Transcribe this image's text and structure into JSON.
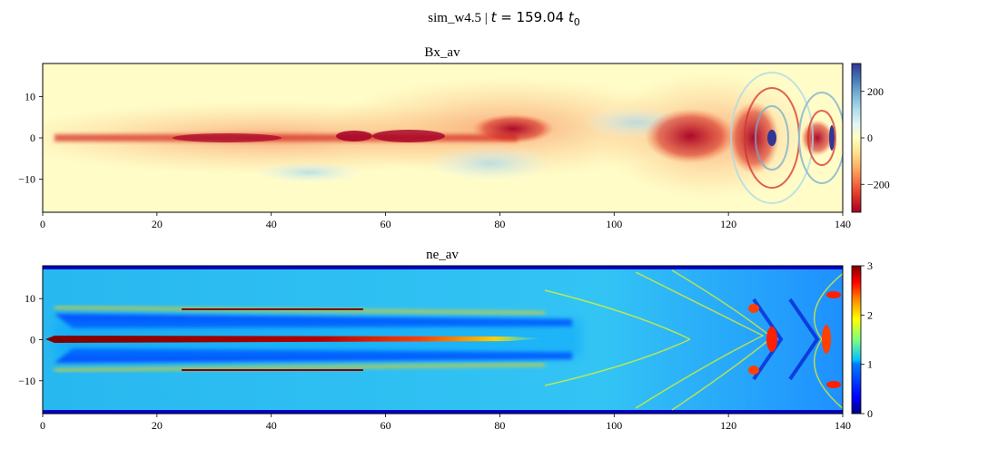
{
  "figure": {
    "suptitle_prefix": "sim_w4.5 | ",
    "suptitle_math_var": "t",
    "suptitle_math_eq": " = 159.04 ",
    "suptitle_math_unit": "t",
    "suptitle_math_sub": "0"
  },
  "chart_data": [
    {
      "type": "heatmap",
      "title": "Bx_av",
      "xlim": [
        0,
        140
      ],
      "ylim": [
        -18,
        18
      ],
      "xticks": [
        0,
        20,
        40,
        60,
        80,
        100,
        120,
        140
      ],
      "yticks": [
        10,
        0,
        -10
      ],
      "colormap": "RdYlBu",
      "clim": [
        -320,
        320
      ],
      "colorbar_ticks": [
        200,
        0,
        -200
      ],
      "colorbar_ticklabels": [
        "200",
        "0",
        "−200"
      ],
      "features": [
        {
          "x": [
            0,
            80
          ],
          "y_center": 0,
          "half_width": 1.2,
          "value": -250
        },
        {
          "x": [
            80,
            90
          ],
          "y_center": 1,
          "half_width": 3,
          "value": -320
        },
        {
          "x": [
            108,
            120
          ],
          "y_center": 0,
          "half_width": 5,
          "value": -320
        },
        {
          "x": [
            122,
            130
          ],
          "y_center": 0,
          "half_width": 10,
          "value": -320
        },
        {
          "x": [
            127,
            128
          ],
          "y_center": 0,
          "half_width": 2,
          "value": 320
        },
        {
          "x": [
            138,
            139
          ],
          "y_center": 0,
          "half_width": 3,
          "value": 320
        }
      ]
    },
    {
      "type": "heatmap",
      "title": "ne_av",
      "xlim": [
        0,
        140
      ],
      "ylim": [
        -18,
        18
      ],
      "xticks": [
        0,
        20,
        40,
        60,
        80,
        100,
        120,
        140
      ],
      "yticks": [
        10,
        0,
        -10
      ],
      "colormap": "jet",
      "clim": [
        0,
        3
      ],
      "colorbar_ticks": [
        3,
        2,
        1,
        0
      ],
      "colorbar_ticklabels": [
        "3",
        "2",
        "1",
        "0"
      ],
      "features": [
        {
          "x": [
            0,
            85
          ],
          "y_center": 0,
          "half_width": 0.8,
          "value": 3
        },
        {
          "x": [
            5,
            100
          ],
          "y_center": 7,
          "half_width": 0.5,
          "value": 2
        },
        {
          "x": [
            5,
            100
          ],
          "y_center": -7,
          "half_width": 0.5,
          "value": 2
        },
        {
          "x": [
            120,
            140
          ],
          "y_center": 0,
          "half_width": 12,
          "value": 2.5
        }
      ]
    }
  ],
  "colors": {
    "rdylbu": [
      "#a50026",
      "#d73027",
      "#f46d43",
      "#fdae61",
      "#fee090",
      "#ffffbf",
      "#e0f3f8",
      "#abd9e9",
      "#74add1",
      "#4575b4",
      "#313695"
    ],
    "jet": [
      "#00007f",
      "#0000ff",
      "#007fff",
      "#00ffff",
      "#7fff7f",
      "#ffff00",
      "#ff7f00",
      "#ff0000",
      "#7f0000"
    ]
  }
}
